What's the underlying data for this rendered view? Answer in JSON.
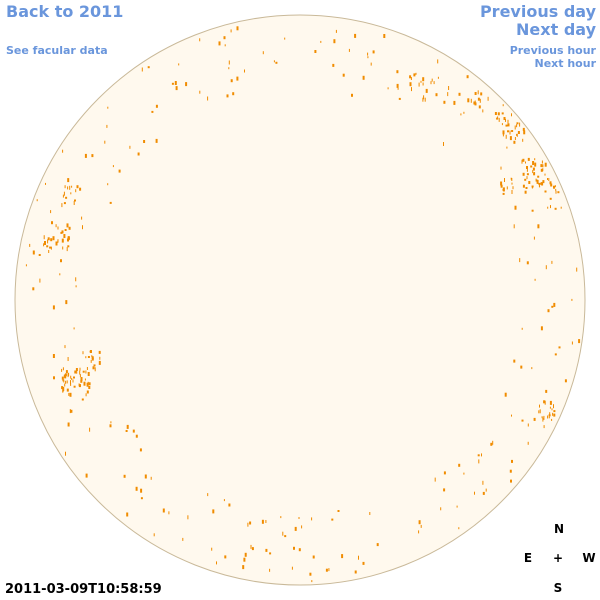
{
  "nav": {
    "back": "Back to 2011",
    "facular": "See facular data",
    "previous_day": "Previous day",
    "next_day": "Next day",
    "previous_hour": "Previous hour",
    "next_hour": "Next hour"
  },
  "timestamp": "2011-03-09T10:58:59",
  "compass": {
    "north": "N",
    "east": "E",
    "center": "+",
    "west": "W",
    "south": "S"
  }
}
